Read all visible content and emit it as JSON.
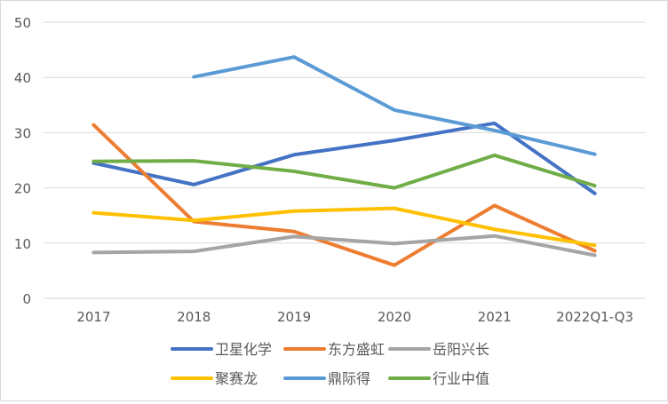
{
  "chart_data": {
    "type": "line",
    "title": "",
    "xlabel": "",
    "ylabel": "",
    "categories": [
      "2017",
      "2018",
      "2019",
      "2020",
      "2021",
      "2022Q1-Q3"
    ],
    "ylim": [
      0,
      50
    ],
    "yticks": [
      0,
      10,
      20,
      30,
      40,
      50
    ],
    "grid": "horizontal",
    "legend_position": "bottom",
    "series": [
      {
        "name": "卫星化学",
        "color": "#4472C4",
        "values": [
          24.5,
          20.6,
          26.0,
          28.6,
          31.7,
          19.0
        ]
      },
      {
        "name": "东方盛虹",
        "color": "#ED7D31",
        "values": [
          31.4,
          13.9,
          12.1,
          6.0,
          16.8,
          8.6
        ]
      },
      {
        "name": "岳阳兴长",
        "color": "#A5A5A5",
        "values": [
          8.3,
          8.5,
          11.2,
          9.9,
          11.3,
          7.8
        ]
      },
      {
        "name": "聚赛龙",
        "color": "#FFC000",
        "values": [
          15.5,
          14.1,
          15.8,
          16.3,
          12.5,
          9.6
        ]
      },
      {
        "name": "鼎际得",
        "color": "#5B9BD5",
        "values": [
          null,
          40.1,
          43.7,
          34.1,
          30.4,
          26.1
        ]
      },
      {
        "name": "行业中值",
        "color": "#70AD47",
        "values": [
          24.8,
          24.9,
          23.0,
          20.0,
          25.9,
          20.4
        ]
      }
    ]
  }
}
